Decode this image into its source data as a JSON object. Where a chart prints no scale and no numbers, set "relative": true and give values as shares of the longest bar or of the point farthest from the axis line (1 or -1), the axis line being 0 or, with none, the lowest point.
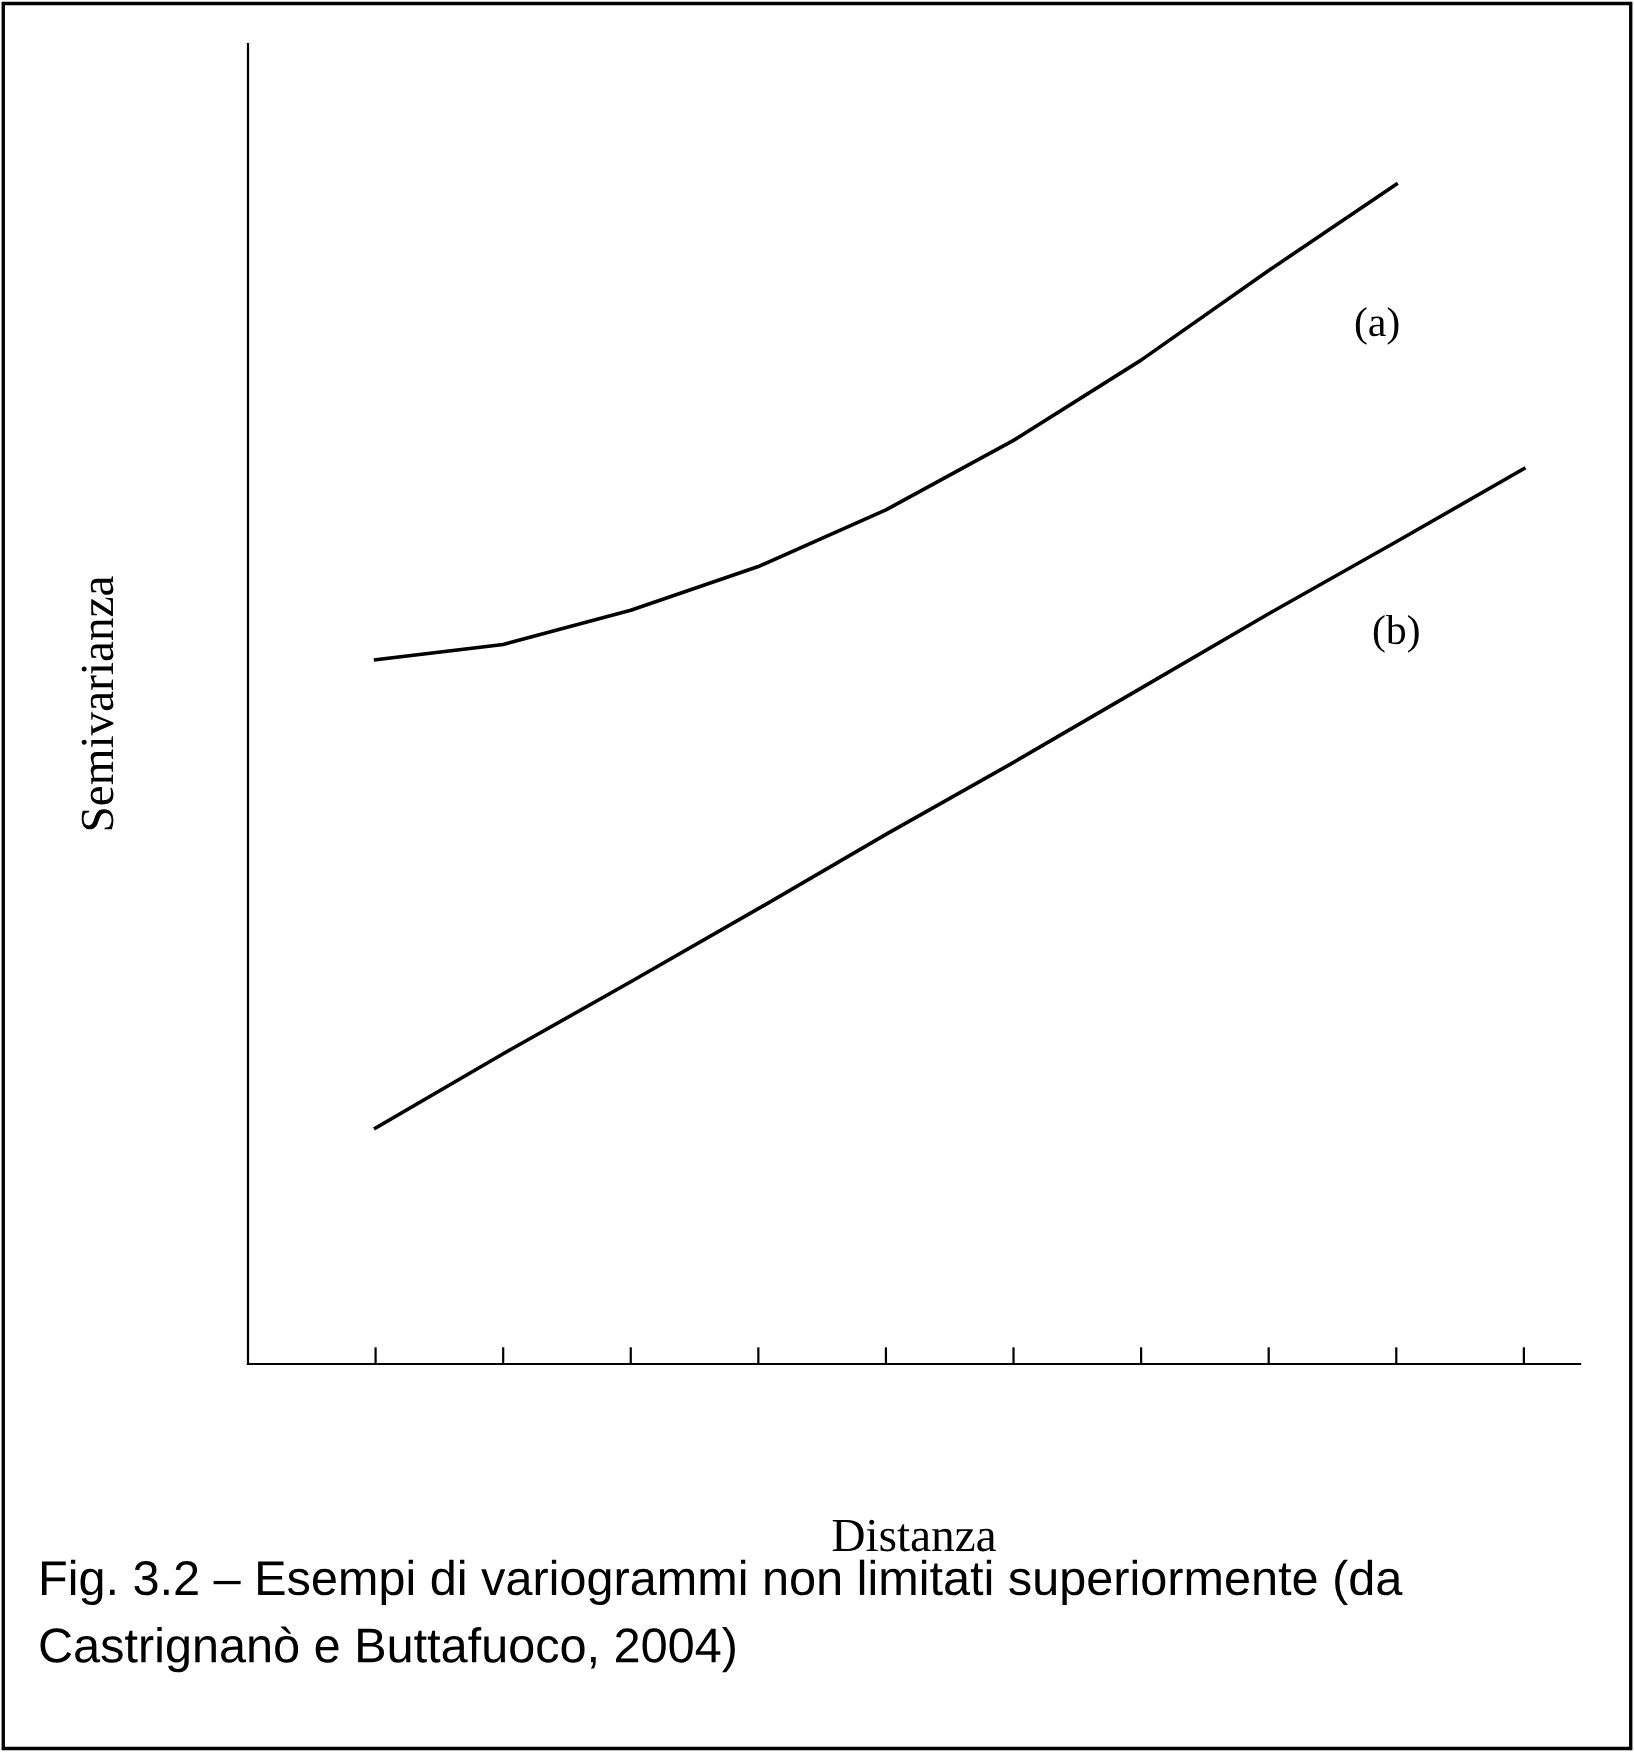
{
  "chart_data": {
    "type": "line",
    "relative": true,
    "xlabel": "Distanza",
    "ylabel": "Semivarianza",
    "categories": [
      null,
      null,
      null,
      null,
      null,
      null,
      null,
      null,
      null,
      null
    ],
    "series": [
      {
        "name": "(a)",
        "color": "#000000",
        "values": [
          0.597,
          0.61,
          0.639,
          0.676,
          0.724,
          0.783,
          0.851,
          0.927,
          1.0,
          null
        ]
      },
      {
        "name": "(b)",
        "color": "#000000",
        "values": [
          0.2,
          0.263,
          0.324,
          0.386,
          0.449,
          0.51,
          0.573,
          0.636,
          0.697,
          0.759
        ]
      }
    ],
    "annotations": [
      "Fig. 3.2 – Esempi di variogrammi non limitati superiormente (da Castrignanò e Buttafuoco, 2004)"
    ],
    "grid": false,
    "legend": false,
    "marker": "none",
    "line_style": "solid"
  }
}
